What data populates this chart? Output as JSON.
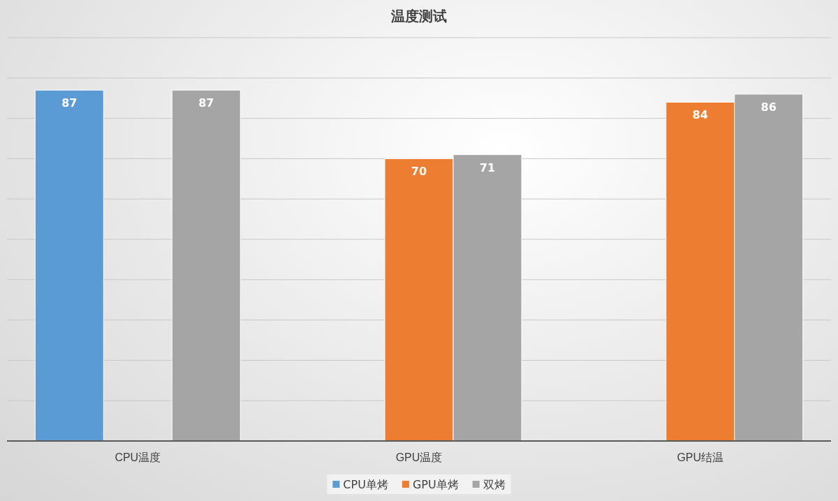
{
  "chart_data": {
    "type": "bar",
    "title": "温度测试",
    "categories": [
      "CPU温度",
      "GPU温度",
      "GPU结温"
    ],
    "series": [
      {
        "name": "CPU单烤",
        "color": "#5b9bd5",
        "values": [
          87,
          null,
          null
        ]
      },
      {
        "name": "GPU单烤",
        "color": "#ed7d31",
        "values": [
          null,
          70,
          84
        ]
      },
      {
        "name": "双烤",
        "color": "#a5a5a5",
        "values": [
          87,
          71,
          86
        ]
      }
    ],
    "ylim": [
      0,
      100
    ],
    "yticks": [
      {
        "value": 0,
        "label": null
      },
      {
        "value": 10,
        "label": null
      },
      {
        "value": 20,
        "label": null
      },
      {
        "value": 30,
        "label": null
      },
      {
        "value": 40,
        "label": null
      },
      {
        "value": 50,
        "label": null
      },
      {
        "value": 60,
        "label": null
      },
      {
        "value": 70,
        "label": null
      },
      {
        "value": 80,
        "label": null
      },
      {
        "value": 90,
        "label": null
      },
      {
        "value": 100,
        "label": null
      }
    ],
    "tick_labels": "x",
    "grid": "y",
    "legend": "bottom",
    "data_labels": true
  }
}
